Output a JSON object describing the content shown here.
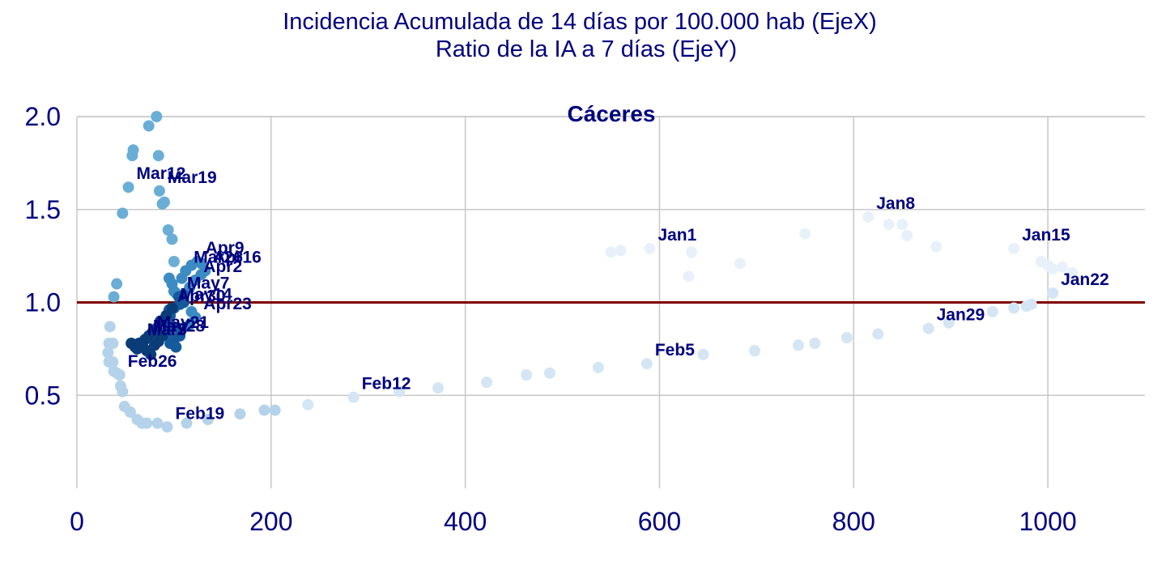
{
  "chart_data": {
    "type": "scatter",
    "title_lines": [
      "Incidencia Acumulada de 14 días por 100.000 hab (EjeX)",
      "Ratio de la IA a 7 días (EjeY)"
    ],
    "panel_title": "Cáceres",
    "xlabel": "",
    "ylabel": "",
    "xlim": [
      0,
      1100
    ],
    "ylim": [
      0,
      2.0
    ],
    "x_ticks": [
      0,
      200,
      400,
      600,
      800,
      1000
    ],
    "x_tick_labels": [
      "0",
      "200",
      "400",
      "600",
      "800",
      "1000"
    ],
    "y_ticks": [
      0.5,
      1.0,
      1.5,
      2.0
    ],
    "y_tick_labels": [
      "0.5",
      "1.0",
      "1.5",
      "2.0"
    ],
    "grid": true,
    "legend": "none",
    "reference_line": {
      "y": 1.0,
      "color": "#800000"
    },
    "series": [
      {
        "color": "#e8f1fa",
        "points": [
          {
            "x": 550,
            "y": 1.27
          },
          {
            "x": 560,
            "y": 1.28
          },
          {
            "x": 590,
            "y": 1.29,
            "label": "Jan1"
          },
          {
            "x": 630,
            "y": 1.14
          },
          {
            "x": 633,
            "y": 1.27
          },
          {
            "x": 683,
            "y": 1.21
          },
          {
            "x": 750,
            "y": 1.37
          },
          {
            "x": 815,
            "y": 1.46,
            "label": "Jan8"
          },
          {
            "x": 836,
            "y": 1.42
          },
          {
            "x": 850,
            "y": 1.42
          },
          {
            "x": 855,
            "y": 1.36
          },
          {
            "x": 885,
            "y": 1.3
          },
          {
            "x": 965,
            "y": 1.29,
            "label": "Jan15"
          },
          {
            "x": 993,
            "y": 1.22
          },
          {
            "x": 1000,
            "y": 1.2
          },
          {
            "x": 1005,
            "y": 1.18
          },
          {
            "x": 1015,
            "y": 1.19
          },
          {
            "x": 1025,
            "y": 1.16
          }
        ]
      },
      {
        "color": "#d4e5f4",
        "points": [
          {
            "x": 1005,
            "y": 1.05,
            "label": "Jan22"
          },
          {
            "x": 983,
            "y": 0.99
          },
          {
            "x": 978,
            "y": 0.98
          },
          {
            "x": 965,
            "y": 0.97
          },
          {
            "x": 943,
            "y": 0.95
          },
          {
            "x": 898,
            "y": 0.89
          },
          {
            "x": 877,
            "y": 0.86,
            "label": "Jan29"
          },
          {
            "x": 825,
            "y": 0.83
          },
          {
            "x": 793,
            "y": 0.81
          },
          {
            "x": 760,
            "y": 0.78
          },
          {
            "x": 743,
            "y": 0.77
          },
          {
            "x": 698,
            "y": 0.74
          },
          {
            "x": 645,
            "y": 0.72
          },
          {
            "x": 587,
            "y": 0.67,
            "label": "Feb5"
          },
          {
            "x": 537,
            "y": 0.65
          },
          {
            "x": 487,
            "y": 0.62
          },
          {
            "x": 463,
            "y": 0.61
          },
          {
            "x": 422,
            "y": 0.57
          },
          {
            "x": 372,
            "y": 0.54
          },
          {
            "x": 332,
            "y": 0.52
          },
          {
            "x": 285,
            "y": 0.49,
            "label": "Feb12"
          },
          {
            "x": 238,
            "y": 0.45
          }
        ]
      },
      {
        "color": "#b4d2ea",
        "points": [
          {
            "x": 204,
            "y": 0.42
          },
          {
            "x": 193,
            "y": 0.42
          },
          {
            "x": 168,
            "y": 0.4
          },
          {
            "x": 135,
            "y": 0.37
          },
          {
            "x": 113,
            "y": 0.35
          },
          {
            "x": 93,
            "y": 0.33,
            "label": "Feb19"
          },
          {
            "x": 83,
            "y": 0.35
          },
          {
            "x": 72,
            "y": 0.35
          },
          {
            "x": 67,
            "y": 0.35
          },
          {
            "x": 62,
            "y": 0.37
          },
          {
            "x": 55,
            "y": 0.41
          },
          {
            "x": 49,
            "y": 0.44
          },
          {
            "x": 47,
            "y": 0.52
          },
          {
            "x": 45,
            "y": 0.55
          },
          {
            "x": 44,
            "y": 0.61,
            "label": "Feb26"
          },
          {
            "x": 41,
            "y": 0.62
          },
          {
            "x": 38,
            "y": 0.63
          },
          {
            "x": 37,
            "y": 0.68
          },
          {
            "x": 33,
            "y": 0.68
          },
          {
            "x": 32,
            "y": 0.73
          },
          {
            "x": 33,
            "y": 0.78
          },
          {
            "x": 37,
            "y": 0.78
          },
          {
            "x": 34,
            "y": 0.87
          }
        ]
      },
      {
        "color": "#6aaed6",
        "points": [
          {
            "x": 38,
            "y": 1.03
          },
          {
            "x": 41,
            "y": 1.1
          },
          {
            "x": 47,
            "y": 1.48
          },
          {
            "x": 53,
            "y": 1.62,
            "label": "Mar12"
          },
          {
            "x": 57,
            "y": 1.79
          },
          {
            "x": 58,
            "y": 1.82
          },
          {
            "x": 74,
            "y": 1.95
          },
          {
            "x": 82,
            "y": 2.0
          },
          {
            "x": 84,
            "y": 1.79
          },
          {
            "x": 85,
            "y": 1.6,
            "label": "Mar19"
          },
          {
            "x": 88,
            "y": 1.53
          },
          {
            "x": 90,
            "y": 1.54
          },
          {
            "x": 94,
            "y": 1.39
          },
          {
            "x": 98,
            "y": 1.34
          },
          {
            "x": 100,
            "y": 1.22
          }
        ]
      },
      {
        "color": "#3c8cc3",
        "points": [
          {
            "x": 95,
            "y": 1.13
          },
          {
            "x": 98,
            "y": 1.1
          },
          {
            "x": 100,
            "y": 1.06
          },
          {
            "x": 102,
            "y": 1.05
          },
          {
            "x": 108,
            "y": 1.13
          },
          {
            "x": 112,
            "y": 1.17,
            "label": "Mar26"
          },
          {
            "x": 118,
            "y": 1.2
          },
          {
            "x": 124,
            "y": 1.22,
            "label": "Apr9"
          },
          {
            "x": 128,
            "y": 1.21
          },
          {
            "x": 132,
            "y": 1.17,
            "label": "Apr16"
          },
          {
            "x": 128,
            "y": 1.15
          },
          {
            "x": 122,
            "y": 1.12,
            "label": "Apr2"
          },
          {
            "x": 116,
            "y": 1.08
          },
          {
            "x": 110,
            "y": 1.02
          },
          {
            "x": 118,
            "y": 0.95
          },
          {
            "x": 122,
            "y": 0.92,
            "label": "Apr23"
          },
          {
            "x": 116,
            "y": 0.88
          },
          {
            "x": 108,
            "y": 0.86
          },
          {
            "x": 102,
            "y": 0.84
          }
        ]
      },
      {
        "color": "#145a9c",
        "points": [
          {
            "x": 105,
            "y": 1.03,
            "label": "May7"
          },
          {
            "x": 110,
            "y": 1.04
          },
          {
            "x": 106,
            "y": 0.99
          },
          {
            "x": 100,
            "y": 0.97
          },
          {
            "x": 95,
            "y": 0.96,
            "label": "Apr30"
          },
          {
            "x": 96,
            "y": 0.93
          },
          {
            "x": 94,
            "y": 0.91
          },
          {
            "x": 90,
            "y": 0.9
          },
          {
            "x": 99,
            "y": 0.87
          },
          {
            "x": 94,
            "y": 0.85
          },
          {
            "x": 90,
            "y": 0.83
          },
          {
            "x": 100,
            "y": 0.8
          },
          {
            "x": 96,
            "y": 0.78
          },
          {
            "x": 102,
            "y": 0.76
          },
          {
            "x": 106,
            "y": 0.82
          },
          {
            "x": 110,
            "y": 1.0
          }
        ]
      },
      {
        "color": "#0a3c78",
        "points": [
          {
            "x": 98,
            "y": 0.97,
            "label": "May14"
          },
          {
            "x": 92,
            "y": 0.93
          },
          {
            "x": 86,
            "y": 0.9
          },
          {
            "x": 82,
            "y": 0.86
          },
          {
            "x": 78,
            "y": 0.84
          },
          {
            "x": 74,
            "y": 0.82,
            "label": "May21"
          },
          {
            "x": 70,
            "y": 0.8,
            "label": "May28"
          },
          {
            "x": 64,
            "y": 0.78,
            "label": "Mar5"
          },
          {
            "x": 60,
            "y": 0.76
          },
          {
            "x": 56,
            "y": 0.78
          },
          {
            "x": 62,
            "y": 0.75
          },
          {
            "x": 68,
            "y": 0.76
          },
          {
            "x": 72,
            "y": 0.74
          },
          {
            "x": 76,
            "y": 0.72
          },
          {
            "x": 80,
            "y": 0.77
          },
          {
            "x": 84,
            "y": 0.79
          },
          {
            "x": 88,
            "y": 0.82
          }
        ]
      }
    ]
  }
}
